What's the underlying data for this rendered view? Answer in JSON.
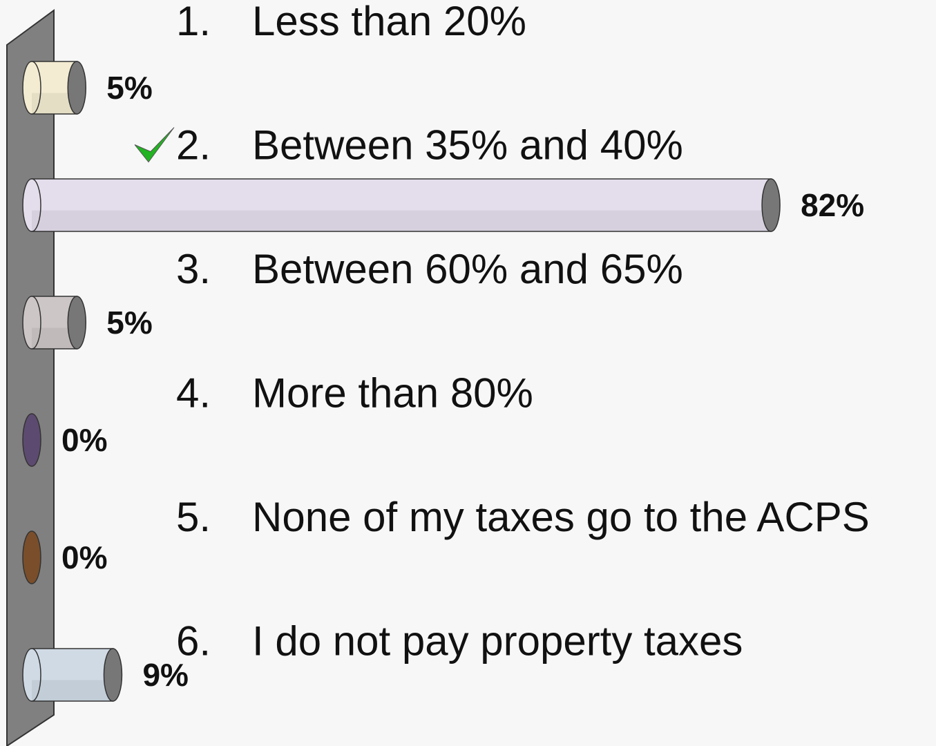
{
  "chart_data": {
    "type": "bar",
    "item_numbers": [
      "1.",
      "2.",
      "3.",
      "4.",
      "5.",
      "6."
    ],
    "categories": [
      "Less than 20%",
      "Between 35% and 40%",
      "Between 60% and 65%",
      "More than 80%",
      "None of my taxes go to the ACPS",
      "I do not pay property taxes"
    ],
    "values": [
      5,
      82,
      5,
      0,
      0,
      9
    ],
    "value_labels": [
      "5%",
      "82%",
      "5%",
      "0%",
      "0%",
      "9%"
    ],
    "colors": [
      "#f3ecd2",
      "#e4deec",
      "#cdc6c6",
      "#5d4a70",
      "#7a4e2a",
      "#cfdae5"
    ],
    "correct_index": 1
  }
}
